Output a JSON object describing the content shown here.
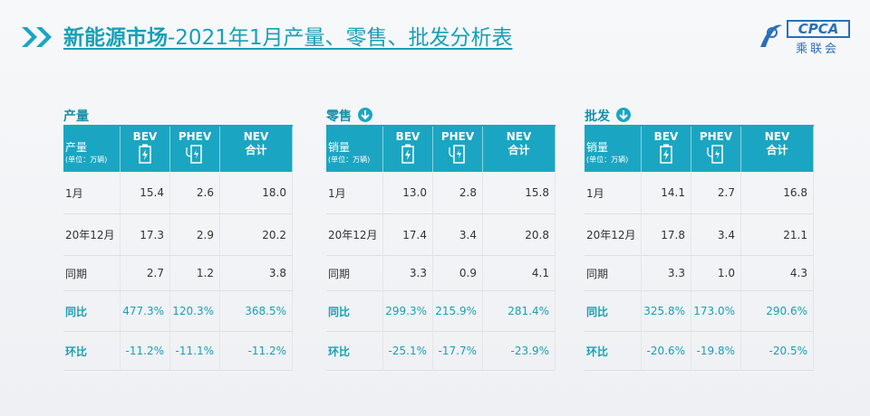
{
  "header": {
    "title_main": "新能源市场",
    "title_rest": "-2021年1月产量、零售、批发分析表",
    "logo_text": "CPCA",
    "logo_sub": "乘联会"
  },
  "tables": [
    {
      "title": "产量",
      "corner": "产量",
      "unit": "(单位：万辆)",
      "columns": [
        [
          "BEV"
        ],
        [
          "PHEV"
        ],
        [
          "NEV",
          "合计"
        ]
      ],
      "rows": [
        {
          "label": "1月",
          "values": [
            "15.4",
            "2.6",
            "18.0"
          ]
        },
        {
          "label": "20年12月",
          "values": [
            "17.3",
            "2.9",
            "20.2"
          ]
        },
        {
          "label": "同期",
          "values": [
            "2.7",
            "1.2",
            "3.8"
          ]
        },
        {
          "label": "同比",
          "values": [
            "477.3%",
            "120.3%",
            "368.5%"
          ]
        },
        {
          "label": "环比",
          "values": [
            "-11.2%",
            "-11.1%",
            "-11.2%"
          ]
        }
      ]
    },
    {
      "title": "零售",
      "corner": "销量",
      "unit": "(单位：万辆)",
      "columns": [
        [
          "BEV"
        ],
        [
          "PHEV"
        ],
        [
          "NEV",
          "合计"
        ]
      ],
      "rows": [
        {
          "label": "1月",
          "values": [
            "13.0",
            "2.8",
            "15.8"
          ]
        },
        {
          "label": "20年12月",
          "values": [
            "17.4",
            "3.4",
            "20.8"
          ]
        },
        {
          "label": "同期",
          "values": [
            "3.3",
            "0.9",
            "4.1"
          ]
        },
        {
          "label": "同比",
          "values": [
            "299.3%",
            "215.9%",
            "281.4%"
          ]
        },
        {
          "label": "环比",
          "values": [
            "-25.1%",
            "-17.7%",
            "-23.9%"
          ]
        }
      ]
    },
    {
      "title": "批发",
      "corner": "销量",
      "unit": "(单位：万辆)",
      "columns": [
        [
          "BEV"
        ],
        [
          "PHEV"
        ],
        [
          "NEV",
          "合计"
        ]
      ],
      "rows": [
        {
          "label": "1月",
          "values": [
            "14.1",
            "2.7",
            "16.8"
          ]
        },
        {
          "label": "20年12月",
          "values": [
            "17.8",
            "3.4",
            "21.1"
          ]
        },
        {
          "label": "同期",
          "values": [
            "3.3",
            "1.0",
            "4.3"
          ]
        },
        {
          "label": "同比",
          "values": [
            "325.8%",
            "173.0%",
            "290.6%"
          ]
        },
        {
          "label": "环比",
          "values": [
            "-20.6%",
            "-19.8%",
            "-20.5%"
          ]
        }
      ]
    }
  ]
}
